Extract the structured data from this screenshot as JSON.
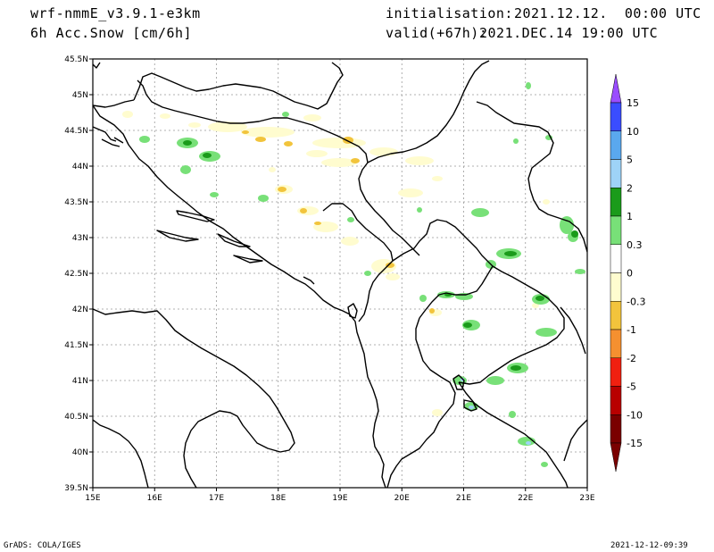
{
  "header": {
    "model": "wrf-nmmE_v3.9.1-e3km",
    "field": "6h Acc.Snow [cm/6h]",
    "init_label": "initialisation:",
    "init_value": "2021.12.12.  00:00 UTC",
    "valid_label": "valid(+67h):",
    "valid_value": "2021.DEC.14 19:00 UTC"
  },
  "footer": {
    "left": "GrADS: COLA/IGES",
    "right": "2021-12-12-09:39"
  },
  "map": {
    "lat_labels": [
      "45.5N",
      "45N",
      "44.5N",
      "44N",
      "43.5N",
      "43N",
      "42.5N",
      "42N",
      "41.5N",
      "41N",
      "40.5N",
      "40N",
      "39.5N"
    ],
    "lon_labels": [
      "15E",
      "16E",
      "17E",
      "18E",
      "19E",
      "20E",
      "21E",
      "22E",
      "23E"
    ]
  },
  "colorbar": {
    "labels": [
      "15",
      "10",
      "5",
      "2",
      "1",
      "0.3",
      "0",
      "-0.3",
      "-1",
      "-2",
      "-5",
      "-10",
      "-15"
    ],
    "colors": [
      "#9a4dff",
      "#3a4dff",
      "#5aa8ee",
      "#9ed3f7",
      "#1a9b1a",
      "#78e078",
      "#ffffff",
      "#fffccf",
      "#f2c43c",
      "#f59030",
      "#f02010",
      "#b80000",
      "#7a0000"
    ]
  },
  "snow_colors": {
    "light_green": "#78e078",
    "dark_green": "#1a9b1a",
    "pale_yellow": "#fffccf",
    "gold": "#f2c43c",
    "light_blue": "#9ed3f7"
  }
}
